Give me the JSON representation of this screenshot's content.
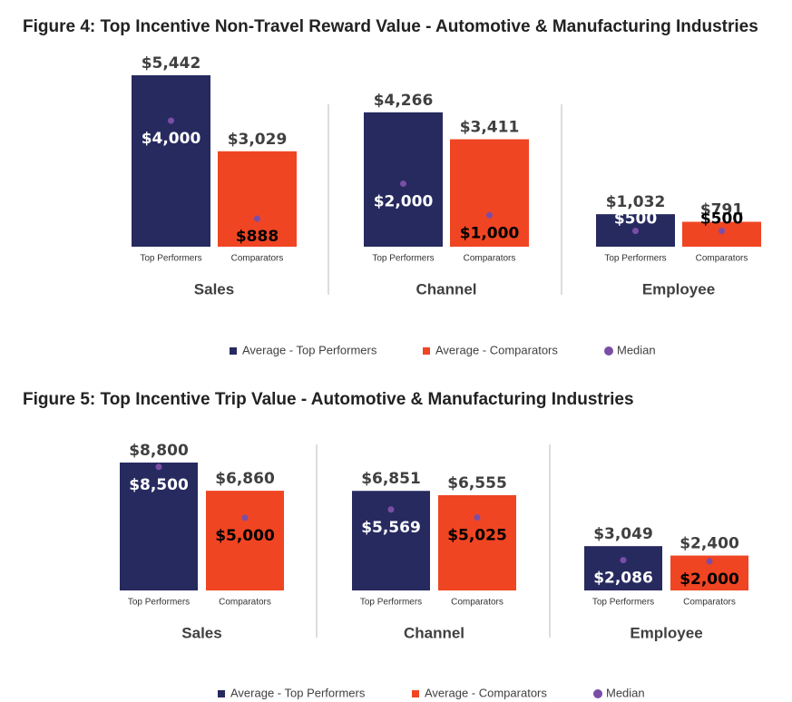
{
  "chart_data": [
    {
      "type": "bar",
      "title": "Figure 4: Top Incentive Non-Travel Reward Value - Automotive & Manufacturing Industries",
      "categories": [
        "Sales",
        "Channel",
        "Employee"
      ],
      "bar_labels": [
        "Top Performers",
        "Comparators"
      ],
      "series": [
        {
          "name": "Average - Top Performers",
          "color": "#272a5f",
          "values": [
            5442,
            4266,
            1032
          ],
          "value_labels": [
            "$5,442",
            "$4,266",
            "$1,032"
          ],
          "median_values": [
            4000,
            2000,
            500
          ],
          "median_labels": [
            "$4,000",
            "$2,000",
            "$500"
          ]
        },
        {
          "name": "Average - Comparators",
          "color": "#f04523",
          "values": [
            3029,
            3411,
            791
          ],
          "value_labels": [
            "$3,029",
            "$3,411",
            "$791"
          ],
          "median_values": [
            888,
            1000,
            500
          ],
          "median_labels": [
            "$888",
            "$1,000",
            "$500"
          ]
        }
      ],
      "median_name": "Median",
      "median_color": "#7a4ea6"
    },
    {
      "type": "bar",
      "title": "Figure 5: Top Incentive Trip Value - Automotive & Manufacturing Industries",
      "categories": [
        "Sales",
        "Channel",
        "Employee"
      ],
      "bar_labels": [
        "Top Performers",
        "Comparators"
      ],
      "series": [
        {
          "name": "Average - Top Performers",
          "color": "#272a5f",
          "values": [
            8800,
            6851,
            3049
          ],
          "value_labels": [
            "$8,800",
            "$6,851",
            "$3,049"
          ],
          "median_values": [
            8500,
            5569,
            2086
          ],
          "median_labels": [
            "$8,500",
            "$5,569",
            "$2,086"
          ]
        },
        {
          "name": "Average - Comparators",
          "color": "#f04523",
          "values": [
            6860,
            6555,
            2400
          ],
          "value_labels": [
            "$6,860",
            "$6,555",
            "$2,400"
          ],
          "median_values": [
            5000,
            5025,
            2000
          ],
          "median_labels": [
            "$5,000",
            "$5,025",
            "$2,000"
          ]
        }
      ],
      "median_name": "Median",
      "median_color": "#7a4ea6"
    }
  ]
}
